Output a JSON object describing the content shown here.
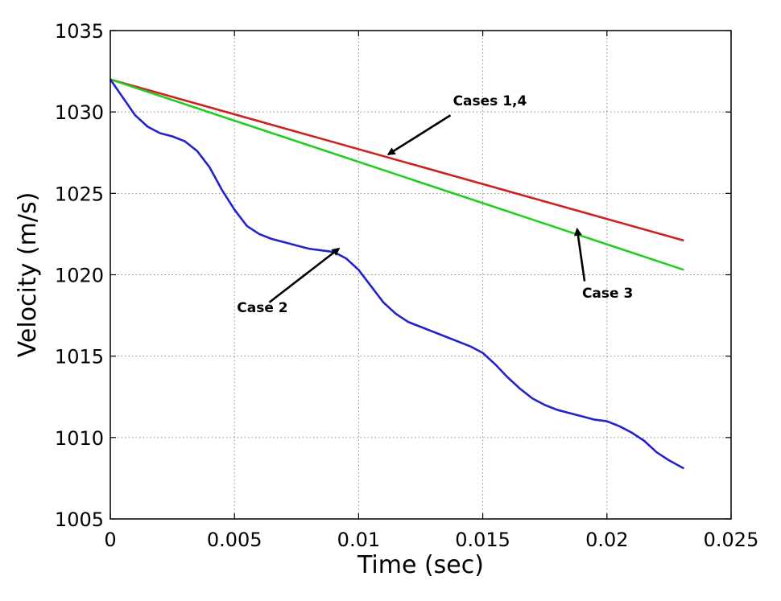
{
  "chart_data": {
    "type": "line",
    "xlabel": "Time (sec)",
    "ylabel": "Velocity (m/s)",
    "xlim": [
      0,
      0.025
    ],
    "ylim": [
      1005,
      1035
    ],
    "grid": true,
    "x_ticks": [
      0,
      0.005,
      0.01,
      0.015,
      0.02,
      0.025
    ],
    "x_tick_labels": [
      "0",
      "0.005",
      "0.01",
      "0.015",
      "0.02",
      "0.025"
    ],
    "y_ticks": [
      1005,
      1010,
      1015,
      1020,
      1025,
      1030,
      1035
    ],
    "y_tick_labels": [
      "1005",
      "1010",
      "1015",
      "1020",
      "1025",
      "1030",
      "1035"
    ],
    "series": [
      {
        "color": "#cc2222",
        "x": [
          0,
          0.0231
        ],
        "y": [
          1032.0,
          1022.1
        ]
      },
      {
        "color": "#22cc22",
        "x": [
          0,
          0.0231
        ],
        "y": [
          1032.0,
          1020.3
        ]
      },
      {
        "color": "#2222cc",
        "x": [
          0,
          0.0005,
          0.001,
          0.0015,
          0.002,
          0.0025,
          0.003,
          0.0035,
          0.004,
          0.0045,
          0.005,
          0.0055,
          0.006,
          0.0065,
          0.007,
          0.0075,
          0.008,
          0.0085,
          0.009,
          0.0095,
          0.01,
          0.0105,
          0.011,
          0.0115,
          0.012,
          0.0125,
          0.013,
          0.0135,
          0.014,
          0.0145,
          0.015,
          0.0155,
          0.016,
          0.0165,
          0.017,
          0.0175,
          0.018,
          0.0185,
          0.019,
          0.0195,
          0.02,
          0.0205,
          0.021,
          0.0215,
          0.022,
          0.0225,
          0.0231
        ],
        "y": [
          1032.0,
          1030.9,
          1029.8,
          1029.1,
          1028.7,
          1028.5,
          1028.2,
          1027.6,
          1026.6,
          1025.2,
          1024.0,
          1023.0,
          1022.5,
          1022.2,
          1022.0,
          1021.8,
          1021.6,
          1021.5,
          1021.4,
          1021.0,
          1020.3,
          1019.3,
          1018.3,
          1017.6,
          1017.1,
          1016.8,
          1016.5,
          1016.2,
          1015.9,
          1015.6,
          1015.2,
          1014.5,
          1013.7,
          1013.0,
          1012.4,
          1012.0,
          1011.7,
          1011.5,
          1011.3,
          1011.1,
          1011.0,
          1010.7,
          1010.3,
          1009.8,
          1009.1,
          1008.6,
          1008.1
        ]
      }
    ],
    "annotations": [
      {
        "text": "Cases 1,4",
        "text_at": [
          0.0138,
          1030.4
        ],
        "arrow_from": [
          0.0137,
          1029.8
        ],
        "arrow_to": [
          0.0112,
          1027.4
        ]
      },
      {
        "text": "Case 2",
        "text_at": [
          0.0051,
          1017.7
        ],
        "arrow_from": [
          0.0064,
          1018.3
        ],
        "arrow_to": [
          0.0092,
          1021.6
        ]
      },
      {
        "text": "Case 3",
        "text_at": [
          0.019,
          1018.6
        ],
        "arrow_from": [
          0.0191,
          1019.6
        ],
        "arrow_to": [
          0.0188,
          1022.8
        ]
      }
    ]
  }
}
